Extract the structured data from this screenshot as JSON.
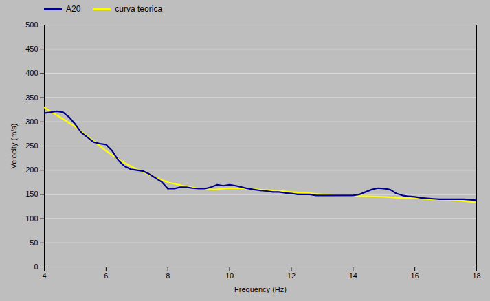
{
  "chart_data": {
    "type": "line",
    "xlabel": "Frequency (Hz)",
    "ylabel": "Velocity (m/s)",
    "xlim": [
      4,
      18
    ],
    "ylim": [
      0,
      500
    ],
    "xticks": [
      4,
      6,
      8,
      10,
      12,
      14,
      16,
      18
    ],
    "yticks": [
      0,
      50,
      100,
      150,
      200,
      250,
      300,
      350,
      400,
      450,
      500
    ],
    "grid": true,
    "legend": "upper left",
    "series": [
      {
        "name": "A20",
        "color": "#00008B",
        "x": [
          4.0,
          4.2,
          4.4,
          4.6,
          4.8,
          5.0,
          5.2,
          5.4,
          5.6,
          5.8,
          6.0,
          6.2,
          6.4,
          6.6,
          6.8,
          7.0,
          7.2,
          7.4,
          7.6,
          7.8,
          8.0,
          8.2,
          8.4,
          8.6,
          8.8,
          9.0,
          9.2,
          9.4,
          9.6,
          9.8,
          10.0,
          10.2,
          10.4,
          10.6,
          10.8,
          11.0,
          11.2,
          11.4,
          11.6,
          11.8,
          12.0,
          12.2,
          12.4,
          12.6,
          12.8,
          13.0,
          13.2,
          13.4,
          13.6,
          13.8,
          14.0,
          14.2,
          14.4,
          14.6,
          14.8,
          15.0,
          15.2,
          15.4,
          15.6,
          15.8,
          16.0,
          16.2,
          16.4,
          16.6,
          16.8,
          17.0,
          17.2,
          17.4,
          17.6,
          17.8,
          18.0
        ],
        "values": [
          318,
          320,
          322,
          320,
          310,
          295,
          278,
          268,
          258,
          255,
          253,
          240,
          220,
          208,
          202,
          200,
          198,
          192,
          184,
          176,
          162,
          162,
          165,
          165,
          163,
          162,
          162,
          165,
          170,
          168,
          170,
          168,
          165,
          162,
          160,
          158,
          157,
          155,
          155,
          153,
          152,
          150,
          150,
          150,
          148,
          148,
          148,
          148,
          148,
          148,
          148,
          150,
          155,
          160,
          163,
          162,
          160,
          152,
          148,
          146,
          145,
          143,
          142,
          141,
          140,
          140,
          140,
          140,
          140,
          139,
          138
        ]
      },
      {
        "name": "curva teorica",
        "color": "#FFFF00",
        "x": [
          4.0,
          4.5,
          5.0,
          5.5,
          6.0,
          6.5,
          7.0,
          7.5,
          8.0,
          8.5,
          9.0,
          9.5,
          10.0,
          10.5,
          11.0,
          11.5,
          12.0,
          12.5,
          13.0,
          13.5,
          14.0,
          14.5,
          15.0,
          15.5,
          16.0,
          16.5,
          17.0,
          17.5,
          18.0
        ],
        "values": [
          330,
          310,
          290,
          265,
          240,
          218,
          202,
          188,
          175,
          168,
          162,
          160,
          163,
          162,
          160,
          158,
          155,
          153,
          150,
          148,
          147,
          146,
          145,
          143,
          142,
          140,
          139,
          137,
          133
        ]
      }
    ]
  }
}
